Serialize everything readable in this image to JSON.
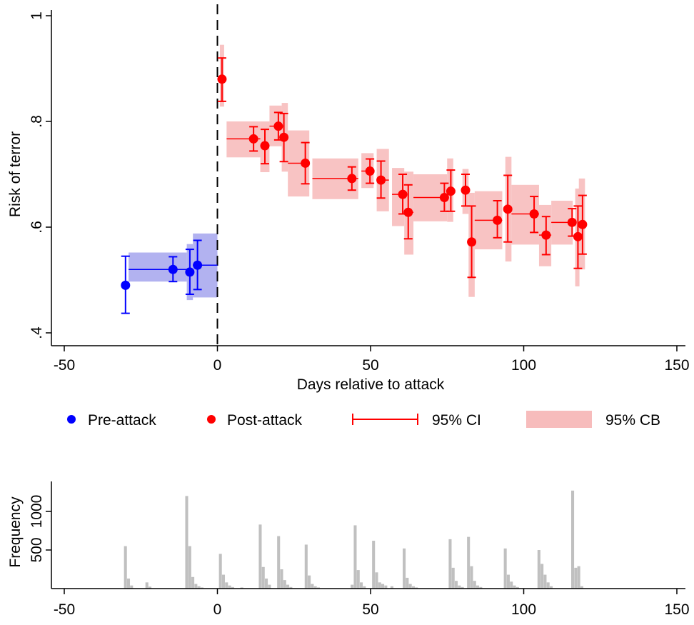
{
  "chart_data": [
    {
      "type": "scatter",
      "title": "",
      "xlabel": "Days relative to attack",
      "ylabel": "Risk of terror",
      "xlim": [
        -50,
        150
      ],
      "ylim": [
        0.4,
        1.0
      ],
      "xticks": [
        -50,
        0,
        50,
        100,
        150
      ],
      "xtick_labels": [
        "-50",
        "0",
        "50",
        "100",
        "150"
      ],
      "yticks": [
        0.4,
        0.6,
        0.8,
        1.0
      ],
      "ytick_labels": [
        ".4",
        ".6",
        ".8",
        "1"
      ],
      "vline_x": 0,
      "grid": false,
      "legend": {
        "position": "bottom",
        "entries": [
          "Pre-attack",
          "Post-attack",
          "95% CI",
          "95% CB"
        ]
      },
      "colors": {
        "pre": "#0000ff",
        "pre_band": "#aaaaee",
        "post": "#ff0000",
        "post_band": "#f7bcbc"
      },
      "series": [
        {
          "name": "Pre-attack",
          "points": [
            {
              "x": -30,
              "y": 0.49,
              "ci": [
                0.437,
                0.545
              ],
              "cb": [
                0.49,
                0.49
              ],
              "bin": [
                -30,
                -30
              ]
            },
            {
              "x": -14.5,
              "y": 0.52,
              "ci": [
                0.497,
                0.544
              ],
              "cb": [
                0.497,
                0.552
              ],
              "bin": [
                -29,
                -10
              ]
            },
            {
              "x": -9,
              "y": 0.515,
              "ci": [
                0.473,
                0.558
              ],
              "cb": [
                0.462,
                0.568
              ],
              "bin": [
                -10,
                -8
              ]
            },
            {
              "x": -6.5,
              "y": 0.528,
              "ci": [
                0.482,
                0.575
              ],
              "cb": [
                0.467,
                0.588
              ],
              "bin": [
                -8,
                0
              ]
            }
          ]
        },
        {
          "name": "Post-attack",
          "points": [
            {
              "x": 1.5,
              "y": 0.88,
              "ci": [
                0.838,
                0.92
              ],
              "cb": [
                0.828,
                0.945
              ],
              "bin": [
                1,
                2
              ]
            },
            {
              "x": 11.8,
              "y": 0.767,
              "ci": [
                0.744,
                0.79
              ],
              "cb": [
                0.732,
                0.8
              ],
              "bin": [
                3,
                14
              ]
            },
            {
              "x": 15.5,
              "y": 0.754,
              "ci": [
                0.72,
                0.785
              ],
              "cb": [
                0.704,
                0.8
              ],
              "bin": [
                14,
                17
              ]
            },
            {
              "x": 19.9,
              "y": 0.791,
              "ci": [
                0.765,
                0.817
              ],
              "cb": [
                0.753,
                0.83
              ],
              "bin": [
                17,
                21
              ]
            },
            {
              "x": 21.7,
              "y": 0.77,
              "ci": [
                0.724,
                0.815
              ],
              "cb": [
                0.705,
                0.835
              ],
              "bin": [
                21,
                23
              ]
            },
            {
              "x": 28.7,
              "y": 0.721,
              "ci": [
                0.682,
                0.76
              ],
              "cb": [
                0.658,
                0.783
              ],
              "bin": [
                23,
                30
              ]
            },
            {
              "x": 43.9,
              "y": 0.692,
              "ci": [
                0.67,
                0.714
              ],
              "cb": [
                0.653,
                0.73
              ],
              "bin": [
                31,
                46
              ]
            },
            {
              "x": 49.8,
              "y": 0.706,
              "ci": [
                0.683,
                0.729
              ],
              "cb": [
                0.674,
                0.74
              ],
              "bin": [
                47,
                51
              ]
            },
            {
              "x": 53.4,
              "y": 0.689,
              "ci": [
                0.655,
                0.725
              ],
              "cb": [
                0.63,
                0.748
              ],
              "bin": [
                52,
                56
              ]
            },
            {
              "x": 60.5,
              "y": 0.662,
              "ci": [
                0.625,
                0.7
              ],
              "cb": [
                0.602,
                0.712
              ],
              "bin": [
                57,
                61
              ]
            },
            {
              "x": 62.3,
              "y": 0.628,
              "ci": [
                0.578,
                0.68
              ],
              "cb": [
                0.548,
                0.705
              ],
              "bin": [
                61,
                64
              ]
            },
            {
              "x": 74.1,
              "y": 0.656,
              "ci": [
                0.63,
                0.683
              ],
              "cb": [
                0.611,
                0.7
              ],
              "bin": [
                64,
                75
              ]
            },
            {
              "x": 76.2,
              "y": 0.668,
              "ci": [
                0.63,
                0.708
              ],
              "cb": [
                0.61,
                0.73
              ],
              "bin": [
                75,
                77
              ]
            },
            {
              "x": 81,
              "y": 0.67,
              "ci": [
                0.64,
                0.7
              ],
              "cb": [
                0.625,
                0.71
              ],
              "bin": [
                80,
                82
              ]
            },
            {
              "x": 83,
              "y": 0.572,
              "ci": [
                0.505,
                0.64
              ],
              "cb": [
                0.468,
                0.665
              ],
              "bin": [
                82,
                84
              ]
            },
            {
              "x": 91.4,
              "y": 0.613,
              "ci": [
                0.58,
                0.65
              ],
              "cb": [
                0.558,
                0.668
              ],
              "bin": [
                84,
                93
              ]
            },
            {
              "x": 94.8,
              "y": 0.634,
              "ci": [
                0.572,
                0.698
              ],
              "cb": [
                0.535,
                0.733
              ],
              "bin": [
                94,
                96
              ]
            },
            {
              "x": 103.4,
              "y": 0.625,
              "ci": [
                0.59,
                0.658
              ],
              "cb": [
                0.567,
                0.68
              ],
              "bin": [
                96,
                105
              ]
            },
            {
              "x": 107.3,
              "y": 0.585,
              "ci": [
                0.548,
                0.62
              ],
              "cb": [
                0.526,
                0.642
              ],
              "bin": [
                105,
                109
              ]
            },
            {
              "x": 115.8,
              "y": 0.609,
              "ci": [
                0.583,
                0.635
              ],
              "cb": [
                0.567,
                0.65
              ],
              "bin": [
                109,
                116
              ]
            },
            {
              "x": 117.7,
              "y": 0.582,
              "ci": [
                0.522,
                0.64
              ],
              "cb": [
                0.488,
                0.673
              ],
              "bin": [
                117,
                118
              ]
            },
            {
              "x": 119.2,
              "y": 0.605,
              "ci": [
                0.549,
                0.66
              ],
              "cb": [
                0.52,
                0.692
              ],
              "bin": [
                118,
                120
              ]
            }
          ]
        }
      ]
    },
    {
      "type": "bar",
      "title": "",
      "xlabel": "",
      "ylabel": "Frequency",
      "xlim": [
        -50,
        150
      ],
      "ylim": [
        0,
        1400
      ],
      "xticks": [
        -50,
        0,
        50,
        100,
        150
      ],
      "xtick_labels": [
        "-50",
        "0",
        "50",
        "100",
        "150"
      ],
      "yticks": [
        500,
        1000
      ],
      "ytick_labels": [
        "500",
        "1000"
      ],
      "color": "#c0c0c0",
      "x": [
        -30,
        -29,
        -28,
        -23,
        -22,
        -10,
        -9,
        -8,
        -7,
        -6,
        -5,
        1,
        2,
        3,
        4,
        5,
        8,
        14,
        15,
        16,
        17,
        20,
        21,
        22,
        23,
        24,
        29,
        30,
        31,
        32,
        33,
        44,
        45,
        46,
        47,
        48,
        51,
        52,
        53,
        54,
        55,
        57,
        61,
        62,
        63,
        64,
        65,
        76,
        77,
        78,
        79,
        80,
        82,
        83,
        84,
        85,
        86,
        94,
        95,
        96,
        97,
        98,
        105,
        106,
        107,
        108,
        109,
        116,
        117,
        118,
        119
      ],
      "values": [
        550,
        130,
        40,
        80,
        25,
        1200,
        550,
        150,
        60,
        30,
        15,
        450,
        180,
        80,
        40,
        20,
        15,
        830,
        280,
        130,
        50,
        680,
        250,
        110,
        50,
        20,
        570,
        170,
        60,
        30,
        15,
        50,
        820,
        240,
        80,
        30,
        620,
        210,
        80,
        60,
        40,
        30,
        520,
        140,
        60,
        30,
        15,
        640,
        270,
        100,
        40,
        20,
        670,
        290,
        100,
        40,
        20,
        520,
        180,
        90,
        40,
        20,
        500,
        320,
        180,
        80,
        30,
        1270,
        270,
        290,
        30
      ]
    }
  ]
}
